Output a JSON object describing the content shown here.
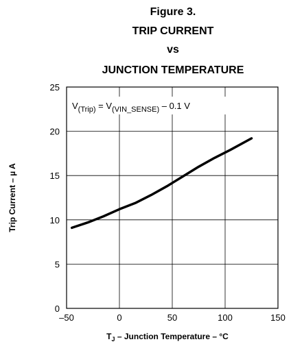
{
  "chart_data": {
    "type": "line",
    "title": [
      "Figure 3.",
      "TRIP CURRENT",
      "vs",
      "JUNCTION TEMPERATURE"
    ],
    "annotation": [
      "V",
      "(Trip)",
      " = V",
      "(VIN_SENSE)",
      " – 0.1 V"
    ],
    "xlabel": [
      "T",
      "J",
      " – Junction Temperature – °C"
    ],
    "ylabel": "Trip Current – µ A",
    "x": [
      -45,
      -30,
      -15,
      0,
      15,
      30,
      45,
      60,
      75,
      90,
      105,
      125
    ],
    "series": [
      {
        "name": "Trip Current",
        "color": "#000000",
        "values": [
          9.1,
          9.7,
          10.4,
          11.2,
          11.9,
          12.8,
          13.8,
          14.9,
          16.0,
          17.0,
          17.9,
          19.2
        ]
      }
    ],
    "xlim": [
      -50,
      150
    ],
    "xticks": [
      {
        "value": -50,
        "label": "–50"
      },
      0,
      50,
      100,
      150
    ],
    "ylim": [
      0,
      25
    ],
    "yticks": [
      0,
      5,
      10,
      15,
      20,
      25
    ],
    "grid": true
  }
}
